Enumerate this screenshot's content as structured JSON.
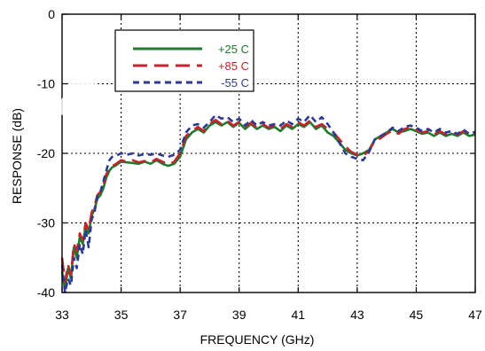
{
  "chart_data": {
    "type": "line",
    "xlabel": "FREQUENCY (GHz)",
    "ylabel": "RESPONSE (dB)",
    "xlim": [
      33,
      47
    ],
    "ylim": [
      -40,
      0
    ],
    "xticks": [
      33,
      35,
      37,
      39,
      41,
      43,
      45,
      47
    ],
    "yticks": [
      0,
      -10,
      -20,
      -30,
      -40
    ],
    "x_tick_labels": [
      "33",
      "35",
      "37",
      "39",
      "41",
      "43",
      "45",
      "47"
    ],
    "y_tick_labels": [
      "0",
      "-10",
      "-20",
      "-30",
      "-40"
    ],
    "grid": "dotted",
    "legend_placement": "top-left",
    "series": [
      {
        "name": "+25 C",
        "color": "#1f7a2e",
        "dash": "solid",
        "x": [
          33.0,
          33.1,
          33.2,
          33.3,
          33.4,
          33.5,
          33.6,
          33.7,
          33.8,
          33.9,
          34.0,
          34.1,
          34.2,
          34.3,
          34.4,
          34.5,
          34.6,
          34.7,
          34.8,
          34.9,
          35.0,
          35.2,
          35.4,
          35.6,
          35.8,
          36.0,
          36.2,
          36.4,
          36.6,
          36.8,
          37.0,
          37.2,
          37.4,
          37.6,
          37.8,
          38.0,
          38.2,
          38.4,
          38.6,
          38.8,
          39.0,
          39.2,
          39.4,
          39.6,
          39.8,
          40.0,
          40.2,
          40.4,
          40.6,
          40.8,
          41.0,
          41.2,
          41.4,
          41.6,
          41.8,
          42.0,
          42.2,
          42.4,
          42.6,
          42.8,
          43.0,
          43.2,
          43.4,
          43.6,
          43.8,
          44.0,
          44.2,
          44.4,
          44.6,
          44.8,
          45.0,
          45.2,
          45.4,
          45.6,
          45.8,
          46.0,
          46.2,
          46.4,
          46.6,
          46.8,
          47.0
        ],
        "values": [
          -37.0,
          -39.5,
          -36.5,
          -38.0,
          -33.5,
          -35.0,
          -32.0,
          -33.0,
          -30.5,
          -31.5,
          -29.0,
          -28.0,
          -26.5,
          -26.0,
          -25.0,
          -23.5,
          -22.5,
          -22.0,
          -21.8,
          -21.5,
          -21.2,
          -21.3,
          -21.4,
          -21.5,
          -21.2,
          -21.5,
          -21.0,
          -21.5,
          -21.8,
          -21.5,
          -20.5,
          -18.0,
          -17.0,
          -16.5,
          -17.0,
          -16.0,
          -15.5,
          -16.0,
          -15.5,
          -16.2,
          -15.6,
          -16.5,
          -15.8,
          -16.5,
          -16.0,
          -16.5,
          -16.2,
          -16.8,
          -16.0,
          -16.5,
          -15.8,
          -16.2,
          -15.5,
          -16.5,
          -16.0,
          -17.0,
          -17.5,
          -18.5,
          -19.5,
          -20.0,
          -20.3,
          -20.0,
          -19.5,
          -18.0,
          -17.5,
          -17.0,
          -16.5,
          -17.0,
          -16.8,
          -16.5,
          -16.8,
          -17.2,
          -17.0,
          -17.5,
          -17.0,
          -17.5,
          -17.2,
          -17.5,
          -17.0,
          -17.5,
          -17.3
        ]
      },
      {
        "name": "+85 C",
        "color": "#c0262b",
        "dash": "long-dash",
        "x": [
          33.0,
          33.1,
          33.2,
          33.3,
          33.4,
          33.5,
          33.6,
          33.7,
          33.8,
          33.9,
          34.0,
          34.1,
          34.2,
          34.3,
          34.4,
          34.5,
          34.6,
          34.7,
          34.8,
          34.9,
          35.0,
          35.2,
          35.4,
          35.6,
          35.8,
          36.0,
          36.2,
          36.4,
          36.6,
          36.8,
          37.0,
          37.2,
          37.4,
          37.6,
          37.8,
          38.0,
          38.2,
          38.4,
          38.6,
          38.8,
          39.0,
          39.2,
          39.4,
          39.6,
          39.8,
          40.0,
          40.2,
          40.4,
          40.6,
          40.8,
          41.0,
          41.2,
          41.4,
          41.6,
          41.8,
          42.0,
          42.2,
          42.4,
          42.6,
          42.8,
          43.0,
          43.2,
          43.4,
          43.6,
          43.8,
          44.0,
          44.2,
          44.4,
          44.6,
          44.8,
          45.0,
          45.2,
          45.4,
          45.6,
          45.8,
          46.0,
          46.2,
          46.4,
          46.6,
          46.8,
          47.0
        ],
        "values": [
          -35.0,
          -38.5,
          -36.0,
          -37.5,
          -33.0,
          -34.0,
          -31.5,
          -32.5,
          -30.0,
          -31.0,
          -28.5,
          -27.5,
          -26.0,
          -25.5,
          -24.5,
          -23.0,
          -22.0,
          -21.8,
          -21.6,
          -21.3,
          -21.0,
          -21.2,
          -21.0,
          -21.3,
          -21.1,
          -21.3,
          -20.8,
          -21.2,
          -21.6,
          -21.2,
          -20.0,
          -17.5,
          -16.8,
          -16.2,
          -16.8,
          -15.8,
          -15.2,
          -15.8,
          -15.3,
          -16.0,
          -15.5,
          -16.2,
          -15.6,
          -16.3,
          -15.8,
          -16.3,
          -16.0,
          -16.5,
          -15.8,
          -16.2,
          -15.5,
          -16.0,
          -15.3,
          -16.2,
          -15.8,
          -16.5,
          -17.0,
          -18.0,
          -19.0,
          -19.8,
          -20.2,
          -20.4,
          -19.6,
          -18.2,
          -17.8,
          -17.2,
          -16.7,
          -17.2,
          -16.5,
          -16.3,
          -16.6,
          -17.0,
          -16.8,
          -17.3,
          -16.8,
          -17.3,
          -17.0,
          -17.3,
          -16.8,
          -17.3,
          -17.1
        ]
      },
      {
        "name": "-55 C",
        "color": "#2e3a8f",
        "dash": "short-dash",
        "x": [
          33.0,
          33.1,
          33.2,
          33.3,
          33.4,
          33.5,
          33.6,
          33.7,
          33.8,
          33.9,
          34.0,
          34.1,
          34.2,
          34.3,
          34.4,
          34.5,
          34.6,
          34.7,
          34.8,
          34.9,
          35.0,
          35.2,
          35.4,
          35.6,
          35.8,
          36.0,
          36.2,
          36.4,
          36.6,
          36.8,
          37.0,
          37.2,
          37.4,
          37.6,
          37.8,
          38.0,
          38.2,
          38.4,
          38.6,
          38.8,
          39.0,
          39.2,
          39.4,
          39.6,
          39.8,
          40.0,
          40.2,
          40.4,
          40.6,
          40.8,
          41.0,
          41.2,
          41.4,
          41.6,
          41.8,
          42.0,
          42.2,
          42.4,
          42.6,
          42.8,
          43.0,
          43.2,
          43.4,
          43.6,
          43.8,
          44.0,
          44.2,
          44.4,
          44.6,
          44.8,
          45.0,
          45.2,
          45.4,
          45.6,
          45.8,
          46.0,
          46.2,
          46.4,
          46.6,
          46.8,
          47.0
        ],
        "values": [
          -36.0,
          -40.0,
          -38.0,
          -39.0,
          -35.0,
          -36.5,
          -33.0,
          -34.5,
          -31.0,
          -33.5,
          -29.5,
          -28.5,
          -26.0,
          -25.5,
          -24.0,
          -22.5,
          -21.0,
          -20.5,
          -20.3,
          -20.2,
          -20.0,
          -20.2,
          -20.0,
          -20.3,
          -20.1,
          -20.2,
          -20.0,
          -20.3,
          -20.5,
          -20.2,
          -19.5,
          -17.0,
          -16.0,
          -15.8,
          -16.3,
          -15.5,
          -14.5,
          -15.0,
          -14.8,
          -15.5,
          -15.0,
          -16.0,
          -15.2,
          -16.0,
          -15.5,
          -16.0,
          -15.8,
          -16.0,
          -15.3,
          -15.8,
          -15.0,
          -15.5,
          -14.5,
          -15.5,
          -14.8,
          -15.8,
          -17.0,
          -18.5,
          -20.0,
          -20.5,
          -20.8,
          -21.0,
          -19.8,
          -18.0,
          -17.5,
          -17.0,
          -16.3,
          -16.8,
          -16.2,
          -16.0,
          -16.3,
          -16.8,
          -16.5,
          -17.0,
          -16.5,
          -17.0,
          -16.8,
          -17.2,
          -16.6,
          -17.2,
          -16.9
        ]
      }
    ]
  }
}
